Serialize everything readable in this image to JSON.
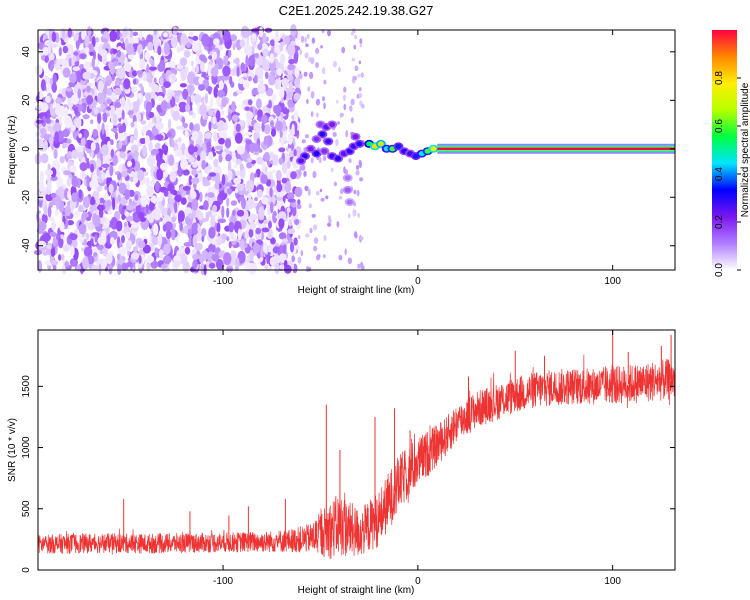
{
  "figure_title": "C2E1.2025.242.19.38.G27",
  "chart_data": [
    {
      "type": "heatmap",
      "title": "C2E1.2025.242.19.38.G27",
      "xlabel": "Height of straight line (km)",
      "ylabel": "Frequency (Hz)",
      "xlim": [
        -195,
        132
      ],
      "ylim": [
        -50,
        49
      ],
      "xticks": [
        -100,
        0,
        100
      ],
      "xtick_labels": [
        "-100",
        "0",
        "100"
      ],
      "yticks": [
        -40,
        -20,
        0,
        20,
        40
      ],
      "ytick_labels": [
        "-40",
        "-20",
        "0",
        "20",
        "40"
      ],
      "colorbar": {
        "label": "Normalized spectral amplitude",
        "range": [
          0,
          1
        ],
        "ticks": [
          0.0,
          0.2,
          0.4,
          0.6,
          0.8
        ],
        "tick_labels": [
          "0.0",
          "0.2",
          "0.4",
          "0.6",
          "0.8"
        ],
        "colormap": [
          "#ffffff",
          "#b07cff",
          "#7a16f0",
          "#0000ff",
          "#00e5ff",
          "#00ff40",
          "#b8ff00",
          "#ffee00",
          "#ff8800",
          "#ff0040"
        ]
      },
      "noise_region_x": [
        -195,
        -61
      ],
      "sparse_region_x": [
        -61,
        -28
      ],
      "tone_line": {
        "x_start": 10,
        "x_end": 132,
        "frequency_hz": 0,
        "amplitude": 1.0
      },
      "structured_points": [
        {
          "x": -50,
          "y": 10,
          "amp": 0.18
        },
        {
          "x": -47,
          "y": 9,
          "amp": 0.25
        },
        {
          "x": -44,
          "y": 10,
          "amp": 0.22
        },
        {
          "x": -49,
          "y": 6,
          "amp": 0.3
        },
        {
          "x": -52,
          "y": 4,
          "amp": 0.2
        },
        {
          "x": -46,
          "y": 3,
          "amp": 0.28
        },
        {
          "x": -55,
          "y": 0,
          "amp": 0.22
        },
        {
          "x": -52,
          "y": -2,
          "amp": 0.32
        },
        {
          "x": -58,
          "y": -3,
          "amp": 0.3
        },
        {
          "x": -60,
          "y": -5,
          "amp": 0.25
        },
        {
          "x": -48,
          "y": -1,
          "amp": 0.2
        },
        {
          "x": -44,
          "y": -3,
          "amp": 0.28
        },
        {
          "x": -41,
          "y": -4,
          "amp": 0.3
        },
        {
          "x": -38,
          "y": -2,
          "amp": 0.25
        },
        {
          "x": -35,
          "y": -1,
          "amp": 0.3
        },
        {
          "x": -33,
          "y": 1,
          "amp": 0.28
        },
        {
          "x": -30,
          "y": 2,
          "amp": 0.3
        },
        {
          "x": -32,
          "y": 5,
          "amp": 0.22
        },
        {
          "x": -25,
          "y": 2,
          "amp": 0.55
        },
        {
          "x": -22,
          "y": 1,
          "amp": 0.8
        },
        {
          "x": -19,
          "y": 2,
          "amp": 0.7
        },
        {
          "x": -16,
          "y": 0,
          "amp": 0.45
        },
        {
          "x": -13,
          "y": 0,
          "amp": 0.6
        },
        {
          "x": -10,
          "y": 1,
          "amp": 0.35
        },
        {
          "x": -7,
          "y": -1,
          "amp": 0.3
        },
        {
          "x": -4,
          "y": -2,
          "amp": 0.28
        },
        {
          "x": -1,
          "y": -3,
          "amp": 0.35
        },
        {
          "x": 2,
          "y": -2,
          "amp": 0.45
        },
        {
          "x": 5,
          "y": -1,
          "amp": 0.6
        },
        {
          "x": 8,
          "y": 0,
          "amp": 0.75
        },
        {
          "x": -36,
          "y": -12,
          "amp": 0.12
        },
        {
          "x": -36,
          "y": -17,
          "amp": 0.15
        },
        {
          "x": -35,
          "y": -22,
          "amp": 0.12
        }
      ]
    },
    {
      "type": "line",
      "xlabel": "Height of straight line (km)",
      "ylabel": "SNR (10 * v/v)",
      "xlim": [
        -195,
        132
      ],
      "ylim": [
        0,
        1960
      ],
      "xticks": [
        -100,
        0,
        100
      ],
      "xtick_labels": [
        "-100",
        "0",
        "100"
      ],
      "yticks": [
        0,
        500,
        1000,
        1500
      ],
      "ytick_labels": [
        "0",
        "500",
        "1000",
        "1500"
      ],
      "color": "#ee3333",
      "series": [
        {
          "name": "SNR",
          "x": [
            -195,
            -180,
            -160,
            -140,
            -120,
            -100,
            -80,
            -65,
            -55,
            -45,
            -40,
            -35,
            -30,
            -25,
            -20,
            -15,
            -10,
            -5,
            0,
            5,
            10,
            15,
            20,
            30,
            40,
            50,
            60,
            70,
            80,
            90,
            100,
            110,
            120,
            132
          ],
          "mean": [
            210,
            215,
            220,
            215,
            220,
            225,
            230,
            240,
            260,
            330,
            370,
            330,
            300,
            360,
            420,
            560,
            700,
            800,
            880,
            950,
            1020,
            1100,
            1200,
            1310,
            1370,
            1430,
            1470,
            1490,
            1500,
            1500,
            1510,
            1520,
            1540,
            1560
          ],
          "spread": [
            75,
            80,
            80,
            80,
            80,
            80,
            85,
            95,
            120,
            240,
            260,
            230,
            200,
            210,
            230,
            240,
            230,
            220,
            200,
            190,
            170,
            160,
            160,
            150,
            150,
            150,
            150,
            150,
            150,
            150,
            155,
            160,
            165,
            170
          ],
          "spikes": [
            {
              "x": -151,
              "y": 580
            },
            {
              "x": -117,
              "y": 480
            },
            {
              "x": -97,
              "y": 445
            },
            {
              "x": -87,
              "y": 520
            },
            {
              "x": -68,
              "y": 580
            },
            {
              "x": -47,
              "y": 1350
            },
            {
              "x": -40,
              "y": 980
            },
            {
              "x": -22,
              "y": 1250
            },
            {
              "x": -12,
              "y": 1320
            },
            {
              "x": -4,
              "y": 1140
            },
            {
              "x": 26,
              "y": 1580
            },
            {
              "x": 50,
              "y": 1790
            },
            {
              "x": 65,
              "y": 1750
            },
            {
              "x": 100,
              "y": 1960
            },
            {
              "x": 108,
              "y": 1780
            },
            {
              "x": 125,
              "y": 1830
            },
            {
              "x": 130,
              "y": 1920
            }
          ]
        }
      ]
    }
  ]
}
